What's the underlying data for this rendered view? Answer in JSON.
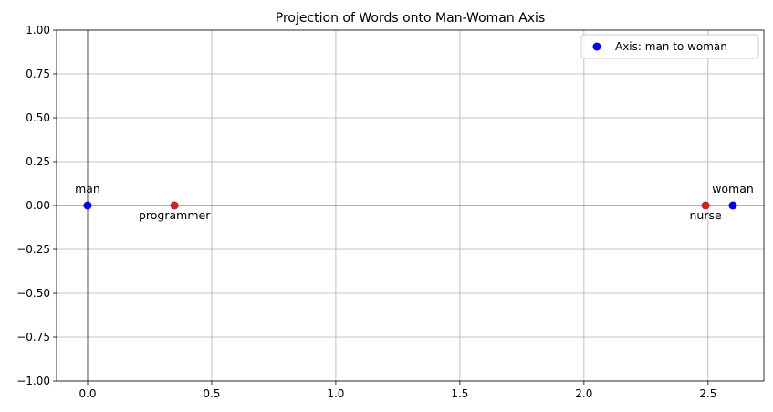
{
  "chart_data": {
    "type": "scatter",
    "title": "Projection of Words onto Man-Woman Axis",
    "xlabel": "",
    "ylabel": "",
    "xlim": [
      -0.125,
      2.725
    ],
    "ylim": [
      -1.0,
      1.0
    ],
    "xticks": [
      0.0,
      0.5,
      1.0,
      1.5,
      2.0,
      2.5
    ],
    "xtick_labels": [
      "0.0",
      "0.5",
      "1.0",
      "1.5",
      "2.0",
      "2.5"
    ],
    "yticks": [
      -1.0,
      -0.75,
      -0.5,
      -0.25,
      0.0,
      0.25,
      0.5,
      0.75,
      1.0
    ],
    "ytick_labels": [
      "−1.00",
      "−0.75",
      "−0.50",
      "−0.25",
      "0.00",
      "0.25",
      "0.50",
      "0.75",
      "1.00"
    ],
    "grid": true,
    "axhline": 0,
    "axvline": 0,
    "legend": {
      "placement": "top-right",
      "entries": [
        {
          "label": "Axis: man to woman",
          "color": "#0000ff"
        }
      ]
    },
    "series": [
      {
        "name": "Axis: man to woman",
        "color": "#0000ff",
        "points": [
          {
            "x": 0.0,
            "y": 0.0,
            "label": "man",
            "label_pos": "above"
          },
          {
            "x": 2.6,
            "y": 0.0,
            "label": "woman",
            "label_pos": "above"
          }
        ]
      },
      {
        "color": "#d62020",
        "points": [
          {
            "x": 0.35,
            "y": 0.0,
            "label": "programmer",
            "label_pos": "below"
          },
          {
            "x": 2.49,
            "y": 0.0,
            "label": "nurse",
            "label_pos": "below"
          }
        ]
      }
    ]
  }
}
